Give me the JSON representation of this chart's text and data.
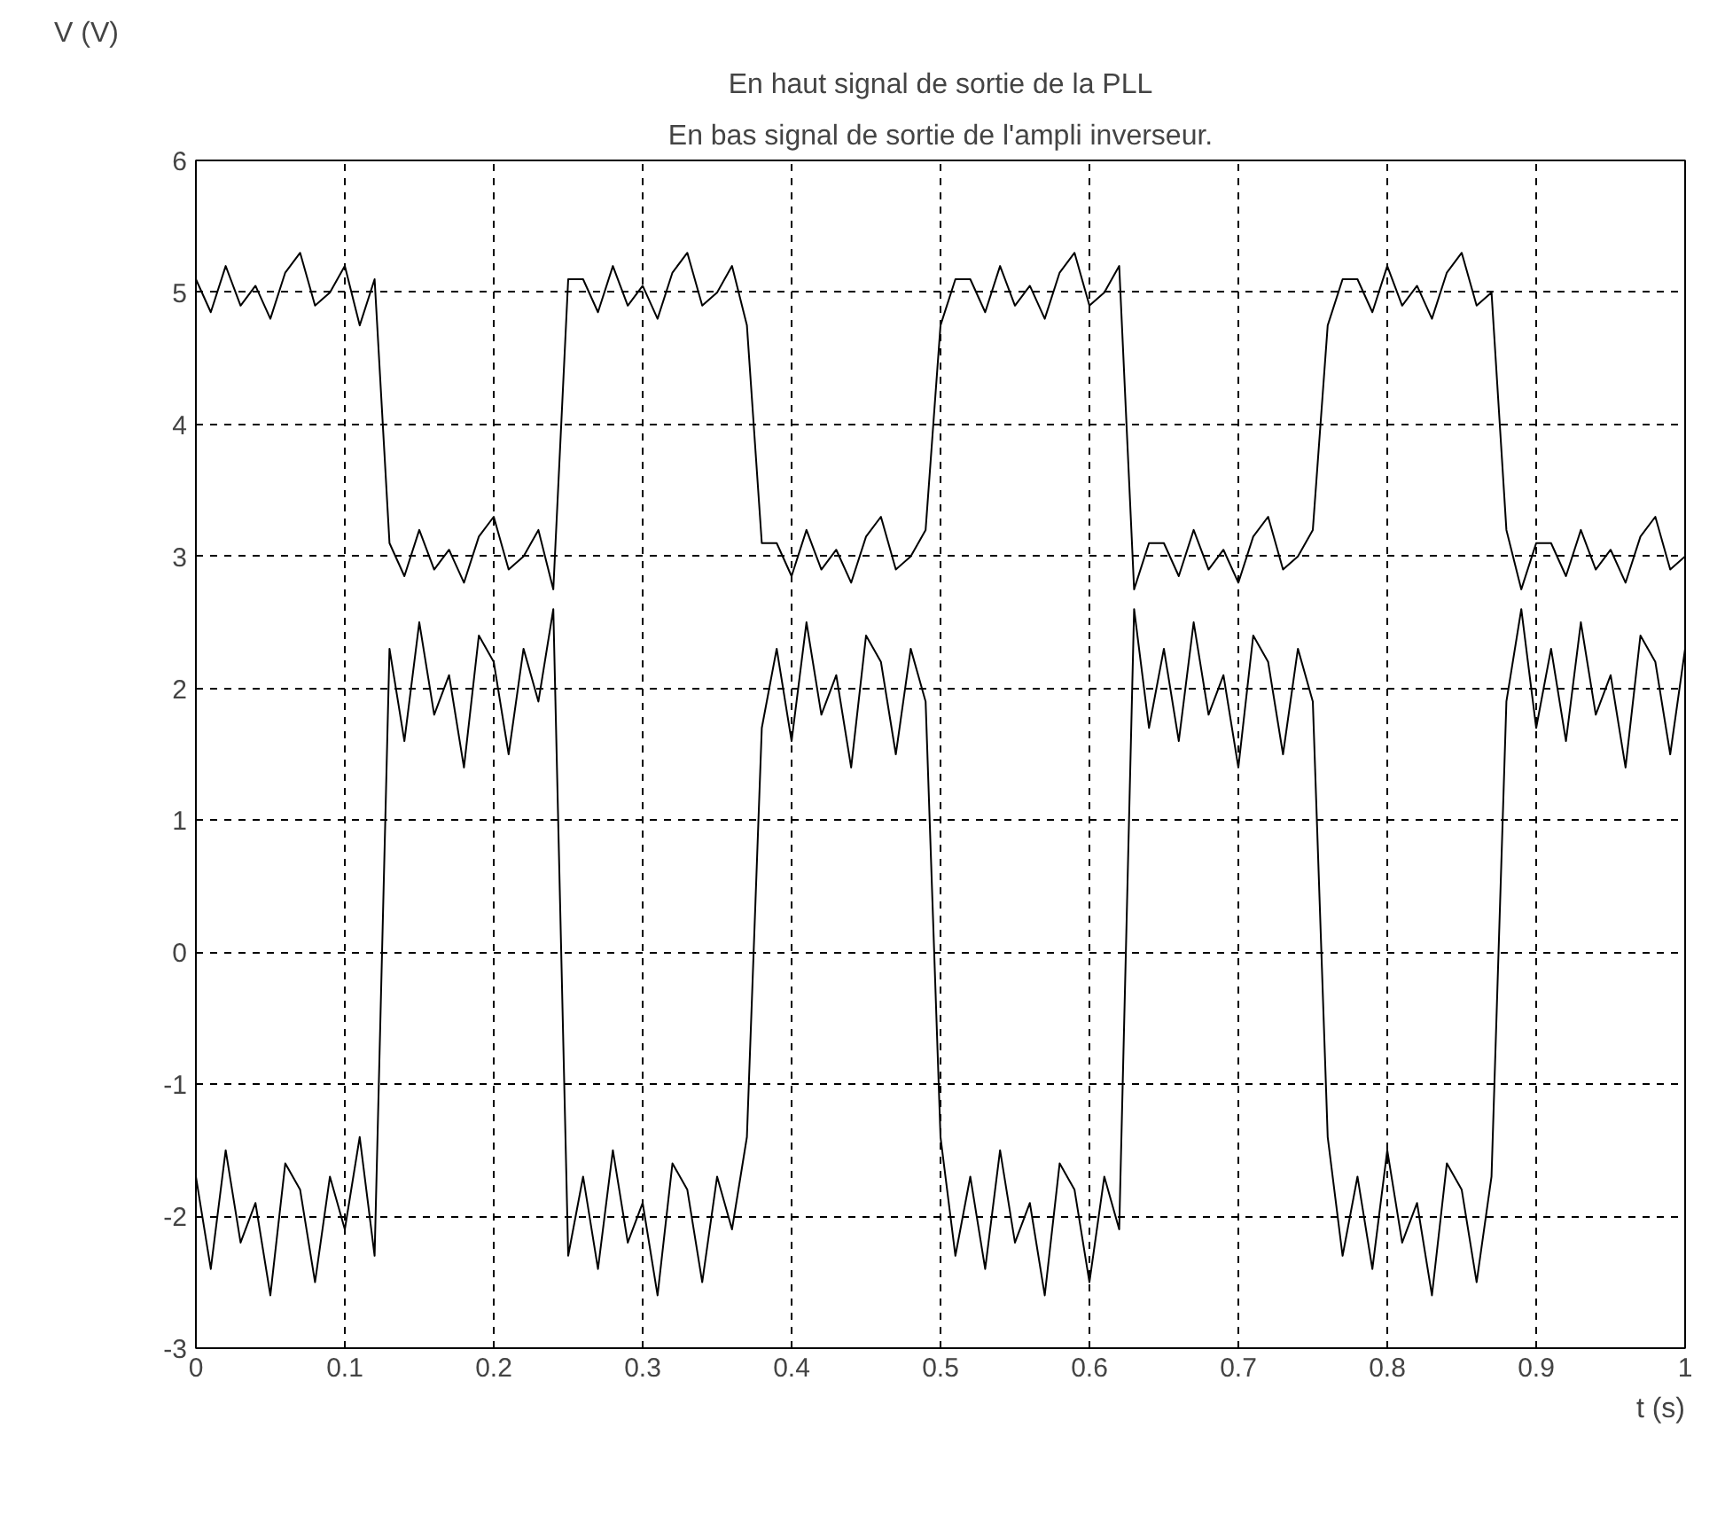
{
  "chart_data": {
    "type": "line",
    "title": "En haut signal de sortie de la PLL",
    "subtitle": "En bas signal de sortie de l'ampli inverseur.",
    "xlabel": "t (s)",
    "ylabel": "V (V)",
    "x": [
      0,
      0.01,
      0.02,
      0.03,
      0.04,
      0.05,
      0.06,
      0.07,
      0.08,
      0.09,
      0.1,
      0.11,
      0.12,
      0.13,
      0.14,
      0.15,
      0.16,
      0.17,
      0.18,
      0.19,
      0.2,
      0.21,
      0.22,
      0.23,
      0.24,
      0.25,
      0.26,
      0.27,
      0.28,
      0.29,
      0.3,
      0.31,
      0.32,
      0.33,
      0.34,
      0.35,
      0.36,
      0.37,
      0.38,
      0.39,
      0.4,
      0.41,
      0.42,
      0.43,
      0.44,
      0.45,
      0.46,
      0.47,
      0.48,
      0.49,
      0.5,
      0.51,
      0.52,
      0.53,
      0.54,
      0.55,
      0.56,
      0.57,
      0.58,
      0.59,
      0.6,
      0.61,
      0.62,
      0.63,
      0.64,
      0.65,
      0.66,
      0.67,
      0.68,
      0.69,
      0.7,
      0.71,
      0.72,
      0.73,
      0.74,
      0.75,
      0.76,
      0.77,
      0.78,
      0.79,
      0.8,
      0.81,
      0.82,
      0.83,
      0.84,
      0.85,
      0.86,
      0.87,
      0.88,
      0.89,
      0.9,
      0.91,
      0.92,
      0.93,
      0.94,
      0.95,
      0.96,
      0.97,
      0.98,
      0.99,
      1
    ],
    "series": [
      {
        "color": "#000000",
        "values": [
          5.1,
          4.85,
          5.2,
          4.9,
          5.05,
          4.8,
          5.15,
          5.3,
          4.9,
          5,
          5.2,
          4.75,
          5.1,
          3.1,
          2.85,
          3.2,
          2.9,
          3.05,
          2.8,
          3.15,
          3.3,
          2.9,
          3,
          3.2,
          2.75,
          5.1,
          5.1,
          4.85,
          5.2,
          4.9,
          5.05,
          4.8,
          5.15,
          5.3,
          4.9,
          5,
          5.2,
          4.75,
          3.1,
          3.1,
          2.85,
          3.2,
          2.9,
          3.05,
          2.8,
          3.15,
          3.3,
          2.9,
          3,
          3.2,
          4.75,
          5.1,
          5.1,
          4.85,
          5.2,
          4.9,
          5.05,
          4.8,
          5.15,
          5.3,
          4.9,
          5,
          5.2,
          2.75,
          3.1,
          3.1,
          2.85,
          3.2,
          2.9,
          3.05,
          2.8,
          3.15,
          3.3,
          2.9,
          3,
          3.2,
          4.75,
          5.1,
          5.1,
          4.85,
          5.2,
          4.9,
          5.05,
          4.8,
          5.15,
          5.3,
          4.9,
          5,
          3.2,
          2.75,
          3.1,
          3.1,
          2.85,
          3.2,
          2.9,
          3.05,
          2.8,
          3.15,
          3.3,
          2.9,
          3
        ]
      },
      {
        "color": "#000000",
        "values": [
          -1.7,
          -2.4,
          -1.5,
          -2.2,
          -1.9,
          -2.6,
          -1.6,
          -1.8,
          -2.5,
          -1.7,
          -2.1,
          -1.4,
          -2.3,
          2.3,
          1.6,
          2.5,
          1.8,
          2.1,
          1.4,
          2.4,
          2.2,
          1.5,
          2.3,
          1.9,
          2.6,
          -2.3,
          -1.7,
          -2.4,
          -1.5,
          -2.2,
          -1.9,
          -2.6,
          -1.6,
          -1.8,
          -2.5,
          -1.7,
          -2.1,
          -1.4,
          1.7,
          2.3,
          1.6,
          2.5,
          1.8,
          2.1,
          1.4,
          2.4,
          2.2,
          1.5,
          2.3,
          1.9,
          -1.4,
          -2.3,
          -1.7,
          -2.4,
          -1.5,
          -2.2,
          -1.9,
          -2.6,
          -1.6,
          -1.8,
          -2.5,
          -1.7,
          -2.1,
          2.6,
          1.7,
          2.3,
          1.6,
          2.5,
          1.8,
          2.1,
          1.4,
          2.4,
          2.2,
          1.5,
          2.3,
          1.9,
          -1.4,
          -2.3,
          -1.7,
          -2.4,
          -1.5,
          -2.2,
          -1.9,
          -2.6,
          -1.6,
          -1.8,
          -2.5,
          -1.7,
          1.9,
          2.6,
          1.7,
          2.3,
          1.6,
          2.5,
          1.8,
          2.1,
          1.4,
          2.4,
          2.2,
          1.5,
          2.3
        ]
      }
    ],
    "xlim": [
      0,
      1
    ],
    "ylim": [
      -3,
      6
    ],
    "xticks": [
      0,
      0.1,
      0.2,
      0.3,
      0.4,
      0.5,
      0.6,
      0.7,
      0.8,
      0.9,
      1
    ],
    "yticks": [
      -3,
      -2,
      -1,
      0,
      1,
      2,
      3,
      4,
      5,
      6
    ],
    "grid": true,
    "marker": "none",
    "line_style": "solid"
  }
}
